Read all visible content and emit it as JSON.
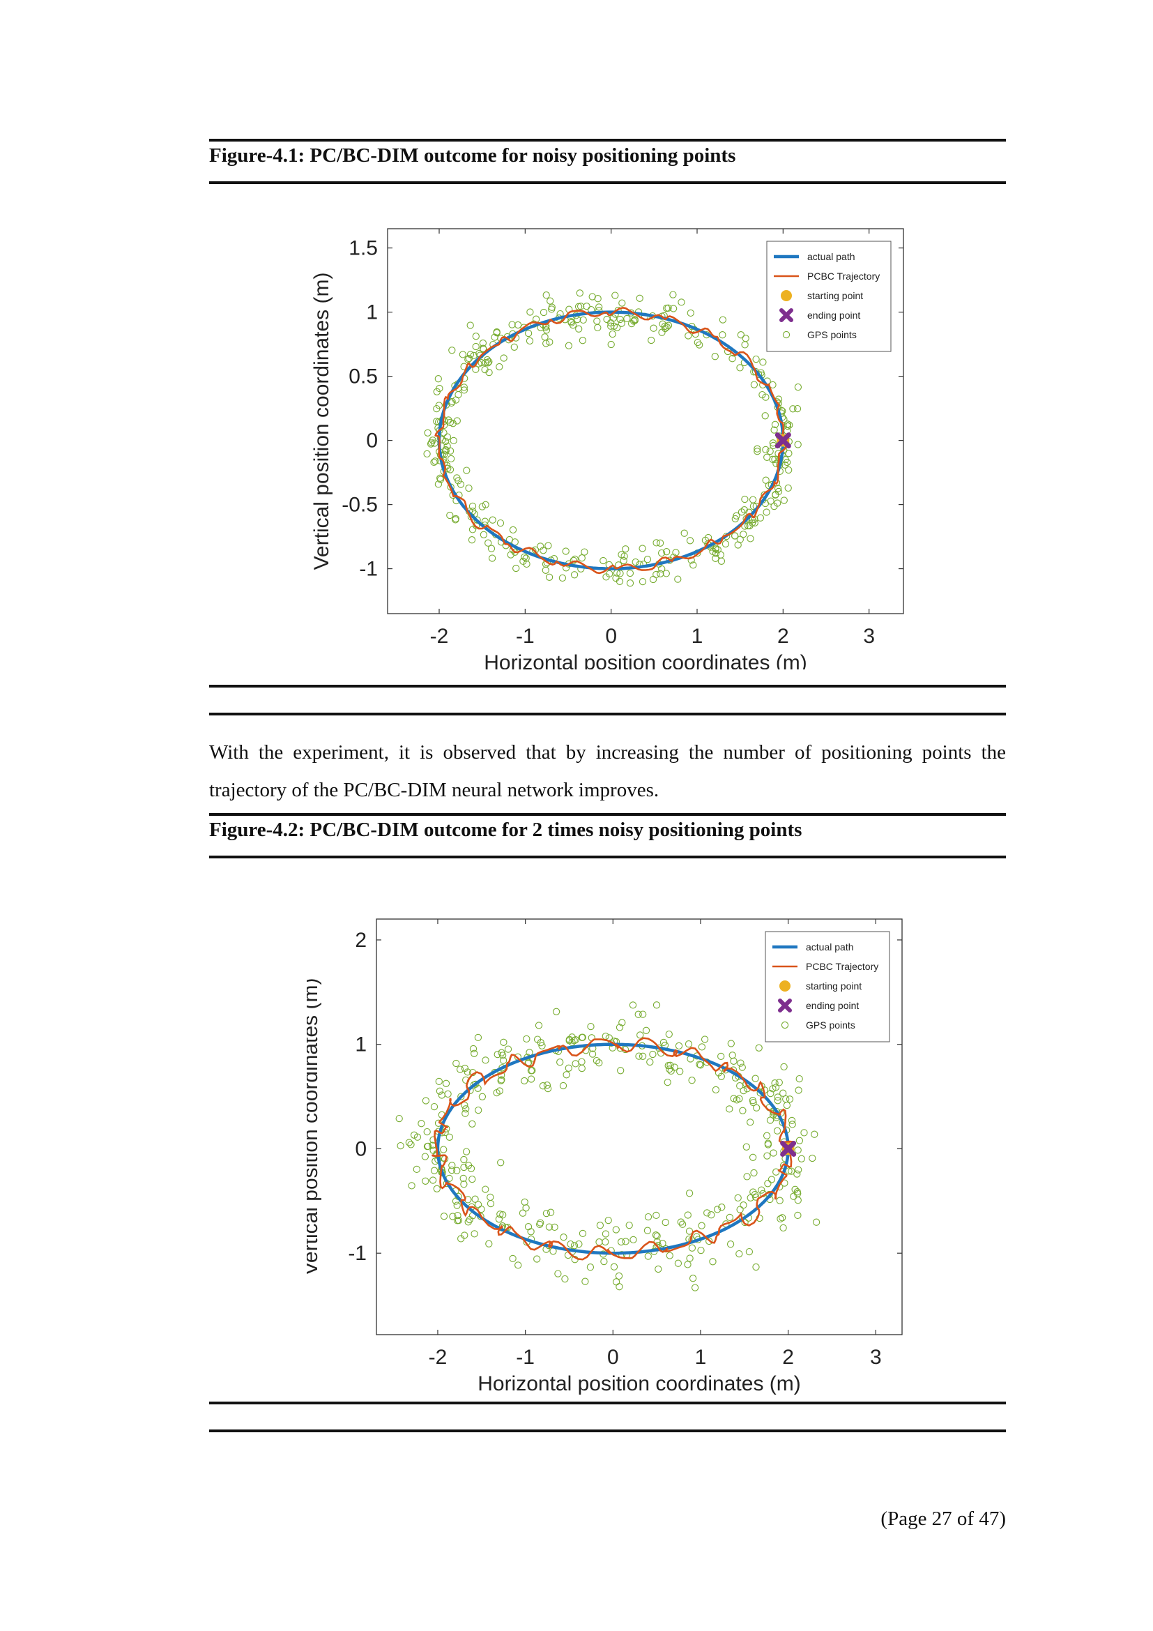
{
  "figure1": {
    "caption": "Figure-4.1: PC/BC-DIM outcome for noisy positioning points"
  },
  "paragraph": "With the experiment, it is observed that by increasing the number of positioning points the trajectory of the PC/BC-DIM neural network improves.",
  "figure2": {
    "caption": "Figure-4.2: PC/BC-DIM outcome for 2 times noisy positioning points"
  },
  "page_number": "(Page 27 of 47)",
  "colors": {
    "actual_path": "#1f77c0",
    "pcbc_trajectory": "#d9541a",
    "starting_point": "#edb120",
    "ending_point": "#7e2f8e",
    "gps_points": "#77ac30"
  },
  "chart_data": [
    {
      "type": "line",
      "xlabel": "Horizontal position coordinates (m)",
      "ylabel": "Vertical position coordinates (m)",
      "xlim": [
        -2.6,
        3.4
      ],
      "ylim": [
        -1.35,
        1.65
      ],
      "xticks": [
        "-2",
        "-1",
        "0",
        "1",
        "2",
        "3"
      ],
      "yticks": [
        "-1",
        "-0.5",
        "0",
        "0.5",
        "1",
        "1.5"
      ],
      "ytick_values": [
        -1,
        -0.5,
        0,
        0.5,
        1,
        1.5
      ],
      "legend_position": "top-right",
      "legend": [
        "actual path",
        "PCBC Trajectory",
        "starting point",
        "ending point",
        "GPS points"
      ],
      "series": [
        {
          "name": "actual path",
          "shape": "ellipse",
          "center": [
            0,
            0
          ],
          "radii": [
            2,
            1
          ]
        },
        {
          "name": "PCBC Trajectory",
          "shape": "ellipse-like",
          "noise": 0.025
        },
        {
          "name": "starting point",
          "x": [
            2
          ],
          "y": [
            0
          ]
        },
        {
          "name": "ending point",
          "x": [
            2
          ],
          "y": [
            0
          ]
        },
        {
          "name": "GPS points",
          "count": 420,
          "spread": 0.09
        }
      ]
    },
    {
      "type": "line",
      "xlabel": "Horizontal position coordinates (m)",
      "ylabel": "Vertical position coordinates (m)",
      "xlim": [
        -2.7,
        3.3
      ],
      "ylim": [
        -1.78,
        2.2
      ],
      "xticks": [
        "-2",
        "-1",
        "0",
        "1",
        "2",
        "3"
      ],
      "yticks": [
        "-1",
        "0",
        "1",
        "2"
      ],
      "ytick_values": [
        -1,
        0,
        1,
        2
      ],
      "legend_position": "top-right",
      "legend": [
        "actual path",
        "PCBC Trajectory",
        "starting point",
        "ending point",
        "GPS points"
      ],
      "series": [
        {
          "name": "actual path",
          "shape": "ellipse",
          "center": [
            0,
            0
          ],
          "radii": [
            2,
            1
          ]
        },
        {
          "name": "PCBC Trajectory",
          "shape": "ellipse-like",
          "noise": 0.05
        },
        {
          "name": "starting point",
          "x": [
            2
          ],
          "y": [
            0
          ]
        },
        {
          "name": "ending point",
          "x": [
            2
          ],
          "y": [
            0
          ]
        },
        {
          "name": "GPS points",
          "count": 420,
          "spread": 0.18
        }
      ]
    }
  ]
}
